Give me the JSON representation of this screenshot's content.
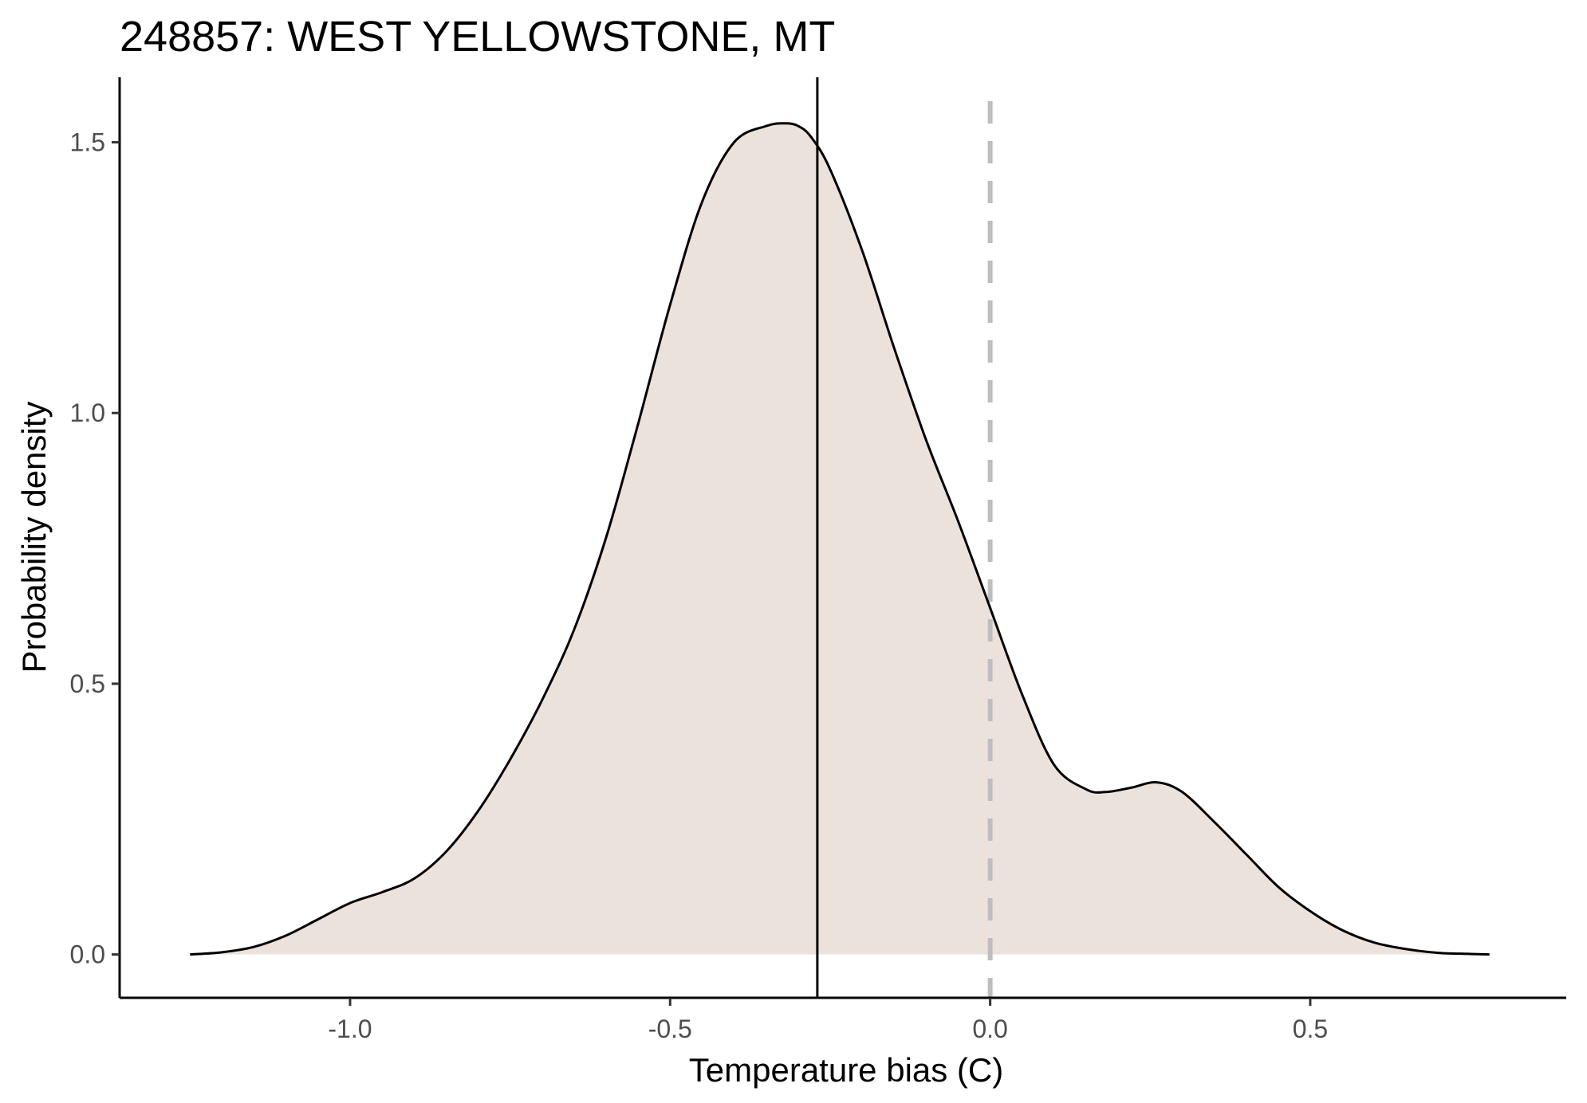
{
  "chart_data": {
    "type": "area",
    "title": "248857: WEST YELLOWSTONE, MT",
    "xlabel": "Temperature bias (C)",
    "ylabel": "Probability density",
    "xlim": [
      -1.36,
      0.9
    ],
    "ylim": [
      -0.08,
      1.62
    ],
    "x_ticks": [
      -1.0,
      -0.5,
      0.0,
      0.5
    ],
    "x_tick_labels": [
      "-1.0",
      "-0.5",
      "0.0",
      "0.5"
    ],
    "y_ticks": [
      0.0,
      0.5,
      1.0,
      1.5
    ],
    "y_tick_labels": [
      "0.0",
      "0.5",
      "1.0",
      "1.5"
    ],
    "grid": false,
    "fill_color": "#ece2dc",
    "line_color": "#000000",
    "density": {
      "x": [
        -1.25,
        -1.2,
        -1.15,
        -1.1,
        -1.05,
        -1.0,
        -0.95,
        -0.9,
        -0.85,
        -0.8,
        -0.75,
        -0.7,
        -0.65,
        -0.6,
        -0.55,
        -0.5,
        -0.45,
        -0.4,
        -0.35,
        -0.32,
        -0.3,
        -0.28,
        -0.25,
        -0.2,
        -0.15,
        -0.1,
        -0.05,
        0.0,
        0.05,
        0.1,
        0.15,
        0.18,
        0.22,
        0.26,
        0.3,
        0.35,
        0.4,
        0.45,
        0.5,
        0.55,
        0.6,
        0.65,
        0.7,
        0.75,
        0.78
      ],
      "y": [
        0.0,
        0.004,
        0.014,
        0.035,
        0.065,
        0.095,
        0.115,
        0.14,
        0.19,
        0.265,
        0.36,
        0.47,
        0.6,
        0.77,
        0.98,
        1.2,
        1.39,
        1.5,
        1.53,
        1.535,
        1.53,
        1.51,
        1.45,
        1.3,
        1.12,
        0.95,
        0.8,
        0.64,
        0.48,
        0.35,
        0.305,
        0.3,
        0.308,
        0.318,
        0.3,
        0.245,
        0.185,
        0.125,
        0.08,
        0.045,
        0.022,
        0.01,
        0.003,
        0.001,
        0.0
      ]
    },
    "reference_lines": [
      {
        "x": -0.27,
        "style": "solid",
        "color": "#000000"
      },
      {
        "x": 0.0,
        "style": "dashed",
        "color": "#bebebe"
      }
    ]
  }
}
